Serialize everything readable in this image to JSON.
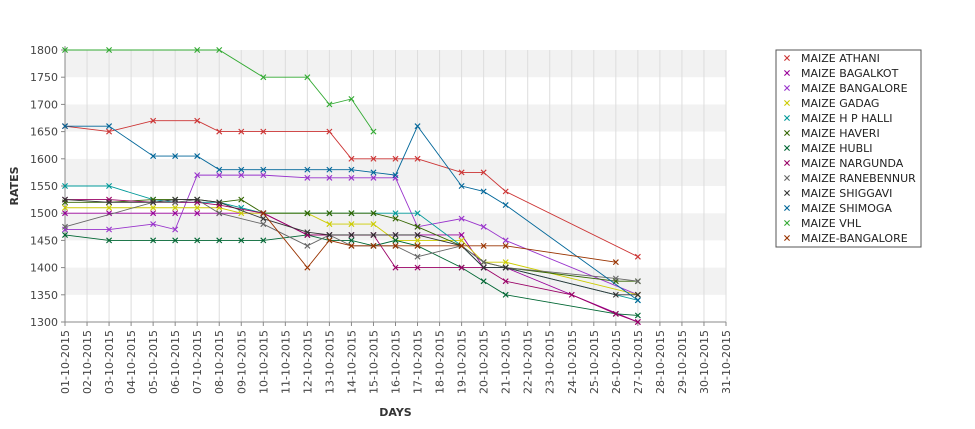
{
  "chart_data": {
    "type": "line",
    "xlabel": "DAYS",
    "ylabel": "RATES",
    "ylim": [
      1300,
      1800
    ],
    "yticks": [
      1300,
      1350,
      1400,
      1450,
      1500,
      1550,
      1600,
      1650,
      1700,
      1750,
      1800
    ],
    "x": [
      "01-10-2015",
      "02-10-2015",
      "03-10-2015",
      "04-10-2015",
      "05-10-2015",
      "06-10-2015",
      "07-10-2015",
      "08-10-2015",
      "09-10-2015",
      "10-10-2015",
      "11-10-2015",
      "12-10-2015",
      "13-10-2015",
      "14-10-2015",
      "15-10-2015",
      "16-10-2015",
      "17-10-2015",
      "18-10-2015",
      "19-10-2015",
      "20-10-2015",
      "21-10-2015",
      "22-10-2015",
      "23-10-2015",
      "24-10-2015",
      "25-10-2015",
      "26-10-2015",
      "27-10-2015",
      "28-10-2015",
      "29-10-2015",
      "30-10-2015",
      "31-10-2015"
    ],
    "grid": "horizontal bands",
    "legend_position": "right",
    "series": [
      {
        "name": "MAIZE ATHANI",
        "color": "#cc3333",
        "points": [
          [
            "01-10-2015",
            1660
          ],
          [
            "03-10-2015",
            1650
          ],
          [
            "05-10-2015",
            1670
          ],
          [
            "07-10-2015",
            1670
          ],
          [
            "08-10-2015",
            1650
          ],
          [
            "09-10-2015",
            1650
          ],
          [
            "10-10-2015",
            1650
          ],
          [
            "13-10-2015",
            1650
          ],
          [
            "14-10-2015",
            1600
          ],
          [
            "15-10-2015",
            1600
          ],
          [
            "16-10-2015",
            1600
          ],
          [
            "17-10-2015",
            1600
          ],
          [
            "19-10-2015",
            1575
          ],
          [
            "20-10-2015",
            1575
          ],
          [
            "21-10-2015",
            1540
          ],
          [
            "27-10-2015",
            1420
          ]
        ]
      },
      {
        "name": "MAIZE BAGALKOT",
        "color": "#990099",
        "points": [
          [
            "01-10-2015",
            1500
          ],
          [
            "03-10-2015",
            1500
          ],
          [
            "05-10-2015",
            1500
          ],
          [
            "06-10-2015",
            1500
          ],
          [
            "07-10-2015",
            1500
          ],
          [
            "08-10-2015",
            1500
          ],
          [
            "10-10-2015",
            1500
          ],
          [
            "12-10-2015",
            1460
          ],
          [
            "13-10-2015",
            1460
          ],
          [
            "14-10-2015",
            1460
          ],
          [
            "15-10-2015",
            1460
          ],
          [
            "16-10-2015",
            1460
          ],
          [
            "17-10-2015",
            1460
          ],
          [
            "19-10-2015",
            1460
          ],
          [
            "20-10-2015",
            1400
          ],
          [
            "21-10-2015",
            1400
          ],
          [
            "27-10-2015",
            1300
          ]
        ]
      },
      {
        "name": "MAIZE BANGALORE",
        "color": "#9933cc",
        "points": [
          [
            "01-10-2015",
            1470
          ],
          [
            "03-10-2015",
            1470
          ],
          [
            "05-10-2015",
            1480
          ],
          [
            "06-10-2015",
            1470
          ],
          [
            "07-10-2015",
            1570
          ],
          [
            "08-10-2015",
            1570
          ],
          [
            "09-10-2015",
            1570
          ],
          [
            "10-10-2015",
            1570
          ],
          [
            "12-10-2015",
            1565
          ],
          [
            "13-10-2015",
            1565
          ],
          [
            "14-10-2015",
            1565
          ],
          [
            "15-10-2015",
            1565
          ],
          [
            "16-10-2015",
            1565
          ],
          [
            "17-10-2015",
            1475
          ],
          [
            "19-10-2015",
            1490
          ],
          [
            "20-10-2015",
            1475
          ],
          [
            "21-10-2015",
            1450
          ],
          [
            "27-10-2015",
            1350
          ]
        ]
      },
      {
        "name": "MAIZE GADAG",
        "color": "#cccc00",
        "points": [
          [
            "01-10-2015",
            1510
          ],
          [
            "03-10-2015",
            1510
          ],
          [
            "05-10-2015",
            1510
          ],
          [
            "06-10-2015",
            1510
          ],
          [
            "07-10-2015",
            1510
          ],
          [
            "08-10-2015",
            1510
          ],
          [
            "09-10-2015",
            1500
          ],
          [
            "12-10-2015",
            1500
          ],
          [
            "13-10-2015",
            1480
          ],
          [
            "14-10-2015",
            1480
          ],
          [
            "15-10-2015",
            1480
          ],
          [
            "16-10-2015",
            1450
          ],
          [
            "17-10-2015",
            1450
          ],
          [
            "19-10-2015",
            1450
          ],
          [
            "20-10-2015",
            1410
          ],
          [
            "21-10-2015",
            1410
          ],
          [
            "27-10-2015",
            1350
          ]
        ]
      },
      {
        "name": "MAIZE H P HALLI",
        "color": "#009999",
        "points": [
          [
            "01-10-2015",
            1550
          ],
          [
            "03-10-2015",
            1550
          ],
          [
            "05-10-2015",
            1525
          ],
          [
            "06-10-2015",
            1520
          ],
          [
            "07-10-2015",
            1520
          ],
          [
            "08-10-2015",
            1520
          ],
          [
            "09-10-2015",
            1510
          ],
          [
            "10-10-2015",
            1500
          ],
          [
            "12-10-2015",
            1500
          ],
          [
            "13-10-2015",
            1500
          ],
          [
            "14-10-2015",
            1500
          ],
          [
            "15-10-2015",
            1500
          ],
          [
            "16-10-2015",
            1500
          ],
          [
            "17-10-2015",
            1500
          ],
          [
            "19-10-2015",
            1440
          ],
          [
            "20-10-2015",
            1400
          ],
          [
            "21-10-2015",
            1400
          ],
          [
            "27-10-2015",
            1340
          ]
        ]
      },
      {
        "name": "MAIZE HAVERI",
        "color": "#336600",
        "points": [
          [
            "01-10-2015",
            1520
          ],
          [
            "03-10-2015",
            1520
          ],
          [
            "05-10-2015",
            1525
          ],
          [
            "06-10-2015",
            1525
          ],
          [
            "07-10-2015",
            1525
          ],
          [
            "08-10-2015",
            1520
          ],
          [
            "09-10-2015",
            1525
          ],
          [
            "10-10-2015",
            1500
          ],
          [
            "12-10-2015",
            1500
          ],
          [
            "13-10-2015",
            1500
          ],
          [
            "14-10-2015",
            1500
          ],
          [
            "15-10-2015",
            1500
          ],
          [
            "16-10-2015",
            1490
          ],
          [
            "17-10-2015",
            1475
          ],
          [
            "19-10-2015",
            1440
          ],
          [
            "20-10-2015",
            1410
          ],
          [
            "21-10-2015",
            1400
          ],
          [
            "26-10-2015",
            1375
          ],
          [
            "27-10-2015",
            1375
          ]
        ]
      },
      {
        "name": "MAIZE HUBLI",
        "color": "#006633",
        "points": [
          [
            "01-10-2015",
            1460
          ],
          [
            "03-10-2015",
            1450
          ],
          [
            "05-10-2015",
            1450
          ],
          [
            "06-10-2015",
            1450
          ],
          [
            "07-10-2015",
            1450
          ],
          [
            "08-10-2015",
            1450
          ],
          [
            "09-10-2015",
            1450
          ],
          [
            "10-10-2015",
            1450
          ],
          [
            "12-10-2015",
            1460
          ],
          [
            "13-10-2015",
            1450
          ],
          [
            "14-10-2015",
            1450
          ],
          [
            "15-10-2015",
            1440
          ],
          [
            "16-10-2015",
            1450
          ],
          [
            "17-10-2015",
            1440
          ],
          [
            "19-10-2015",
            1400
          ],
          [
            "20-10-2015",
            1375
          ],
          [
            "21-10-2015",
            1350
          ],
          [
            "26-10-2015",
            1315
          ],
          [
            "27-10-2015",
            1312
          ]
        ]
      },
      {
        "name": "MAIZE NARGUNDA",
        "color": "#990066",
        "points": [
          [
            "01-10-2015",
            1525
          ],
          [
            "03-10-2015",
            1525
          ],
          [
            "05-10-2015",
            1520
          ],
          [
            "06-10-2015",
            1520
          ],
          [
            "07-10-2015",
            1520
          ],
          [
            "08-10-2015",
            1515
          ],
          [
            "10-10-2015",
            1500
          ],
          [
            "12-10-2015",
            1460
          ],
          [
            "13-10-2015",
            1460
          ],
          [
            "14-10-2015",
            1460
          ],
          [
            "15-10-2015",
            1460
          ],
          [
            "16-10-2015",
            1400
          ],
          [
            "17-10-2015",
            1400
          ],
          [
            "19-10-2015",
            1400
          ],
          [
            "20-10-2015",
            1400
          ],
          [
            "21-10-2015",
            1375
          ],
          [
            "24-10-2015",
            1350
          ],
          [
            "26-10-2015",
            1315
          ],
          [
            "27-10-2015",
            1300
          ]
        ]
      },
      {
        "name": "MAIZE RANEBENNUR",
        "color": "#666666",
        "points": [
          [
            "01-10-2015",
            1475
          ],
          [
            "05-10-2015",
            1520
          ],
          [
            "06-10-2015",
            1520
          ],
          [
            "07-10-2015",
            1525
          ],
          [
            "08-10-2015",
            1500
          ],
          [
            "10-10-2015",
            1480
          ],
          [
            "12-10-2015",
            1440
          ],
          [
            "13-10-2015",
            1460
          ],
          [
            "14-10-2015",
            1440
          ],
          [
            "15-10-2015",
            1440
          ],
          [
            "16-10-2015",
            1440
          ],
          [
            "17-10-2015",
            1420
          ],
          [
            "19-10-2015",
            1440
          ],
          [
            "20-10-2015",
            1410
          ],
          [
            "21-10-2015",
            1400
          ],
          [
            "26-10-2015",
            1380
          ],
          [
            "27-10-2015",
            1375
          ]
        ]
      },
      {
        "name": "MAIZE SHIGGAVI",
        "color": "#333333",
        "points": [
          [
            "01-10-2015",
            1525
          ],
          [
            "03-10-2015",
            1520
          ],
          [
            "05-10-2015",
            1520
          ],
          [
            "06-10-2015",
            1525
          ],
          [
            "07-10-2015",
            1525
          ],
          [
            "08-10-2015",
            1520
          ],
          [
            "10-10-2015",
            1490
          ],
          [
            "12-10-2015",
            1465
          ],
          [
            "13-10-2015",
            1460
          ],
          [
            "14-10-2015",
            1460
          ],
          [
            "15-10-2015",
            1460
          ],
          [
            "16-10-2015",
            1460
          ],
          [
            "17-10-2015",
            1460
          ],
          [
            "19-10-2015",
            1440
          ],
          [
            "20-10-2015",
            1400
          ],
          [
            "21-10-2015",
            1400
          ],
          [
            "26-10-2015",
            1350
          ],
          [
            "27-10-2015",
            1350
          ]
        ]
      },
      {
        "name": "MAIZE SHIMOGA",
        "color": "#006699",
        "points": [
          [
            "01-10-2015",
            1660
          ],
          [
            "03-10-2015",
            1660
          ],
          [
            "05-10-2015",
            1605
          ],
          [
            "06-10-2015",
            1605
          ],
          [
            "07-10-2015",
            1605
          ],
          [
            "08-10-2015",
            1580
          ],
          [
            "09-10-2015",
            1580
          ],
          [
            "10-10-2015",
            1580
          ],
          [
            "12-10-2015",
            1580
          ],
          [
            "13-10-2015",
            1580
          ],
          [
            "14-10-2015",
            1580
          ],
          [
            "15-10-2015",
            1575
          ],
          [
            "16-10-2015",
            1570
          ],
          [
            "17-10-2015",
            1660
          ],
          [
            "19-10-2015",
            1550
          ],
          [
            "20-10-2015",
            1540
          ],
          [
            "21-10-2015",
            1515
          ],
          [
            "27-10-2015",
            1340
          ]
        ]
      },
      {
        "name": "MAIZE VHL",
        "color": "#33aa33",
        "points": [
          [
            "01-10-2015",
            1800
          ],
          [
            "03-10-2015",
            1800
          ],
          [
            "07-10-2015",
            1800
          ],
          [
            "08-10-2015",
            1800
          ],
          [
            "10-10-2015",
            1750
          ],
          [
            "12-10-2015",
            1750
          ],
          [
            "13-10-2015",
            1700
          ],
          [
            "14-10-2015",
            1710
          ],
          [
            "15-10-2015",
            1650
          ]
        ]
      },
      {
        "name": "MAIZE-BANGALORE",
        "color": "#993300",
        "points": [
          [
            "10-10-2015",
            1500
          ],
          [
            "12-10-2015",
            1400
          ],
          [
            "13-10-2015",
            1450
          ],
          [
            "14-10-2015",
            1440
          ],
          [
            "15-10-2015",
            1440
          ],
          [
            "16-10-2015",
            1440
          ],
          [
            "17-10-2015",
            1440
          ],
          [
            "19-10-2015",
            1440
          ],
          [
            "20-10-2015",
            1440
          ],
          [
            "21-10-2015",
            1440
          ],
          [
            "26-10-2015",
            1410
          ]
        ]
      }
    ]
  }
}
